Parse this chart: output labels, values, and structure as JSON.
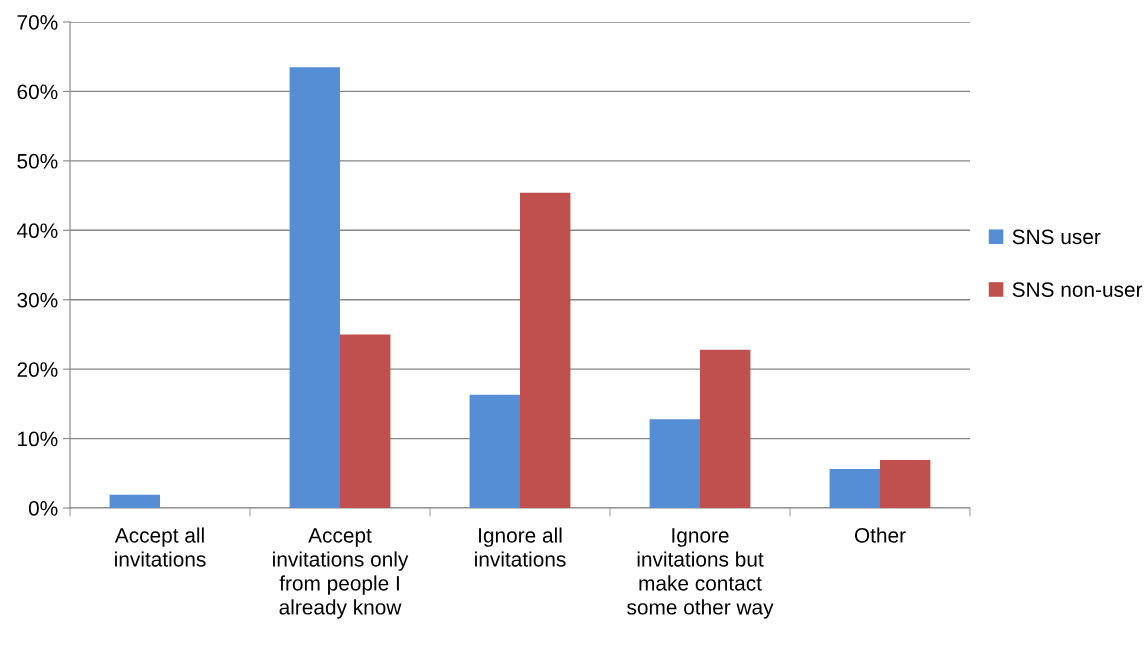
{
  "chart_data": {
    "type": "bar",
    "categories": [
      "Accept all\ninvitations",
      "Accept\ninvitations only\nfrom people I\nalready know",
      "Ignore all\ninvitations",
      "Ignore\ninvitations but\nmake contact\nsome other way",
      "Other"
    ],
    "series": [
      {
        "name": "SNS user",
        "color": "#558ed5",
        "values": [
          1.9,
          63.5,
          16.3,
          12.8,
          5.6
        ]
      },
      {
        "name": "SNS non-user",
        "color": "#c0504d",
        "values": [
          0,
          25,
          45.4,
          22.8,
          6.9
        ]
      }
    ],
    "ylim": [
      0,
      70
    ],
    "yticks": [
      {
        "value": 0,
        "label": "0%"
      },
      {
        "value": 10,
        "label": "10%"
      },
      {
        "value": 20,
        "label": "20%"
      },
      {
        "value": 30,
        "label": "30%"
      },
      {
        "value": 40,
        "label": "40%"
      },
      {
        "value": 50,
        "label": "50%"
      },
      {
        "value": 60,
        "label": "60%"
      },
      {
        "value": 70,
        "label": "70%"
      }
    ],
    "grid": "y",
    "legend": "right"
  }
}
